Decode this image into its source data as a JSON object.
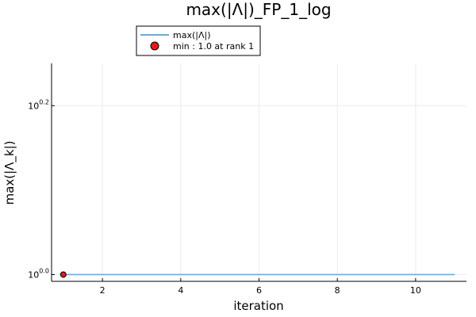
{
  "chart_data": {
    "type": "line",
    "title": "max(|Λ|)_FP_1_log",
    "xlabel": "iteration",
    "ylabel": "max(|Λ_k|)",
    "y_scale": "log10",
    "grid": true,
    "legend_position": "top-left (outside, below title)",
    "xlim": [
      0.7,
      11.3
    ],
    "xticks": [
      2,
      4,
      6,
      8,
      10
    ],
    "ylim_exponent": [
      -0.008,
      0.25
    ],
    "yticks": [
      {
        "base": "10",
        "exp": "0.0",
        "exponent_value": 0.0
      },
      {
        "base": "10",
        "exp": "0.2",
        "exponent_value": 0.2
      }
    ],
    "series": [
      {
        "name": "max(|Λ|)",
        "kind": "line",
        "color": "#6baed6",
        "x": [
          1,
          2,
          3,
          4,
          5,
          6,
          7,
          8,
          9,
          10,
          11
        ],
        "y": [
          1.0,
          1.0,
          1.0,
          1.0,
          1.0,
          1.0,
          1.0,
          1.0,
          1.0,
          1.0,
          1.0
        ]
      },
      {
        "name": "min : 1.0 at rank 1",
        "kind": "scatter",
        "color": "#e31a1c",
        "x": [
          1
        ],
        "y": [
          1.0
        ]
      }
    ]
  }
}
